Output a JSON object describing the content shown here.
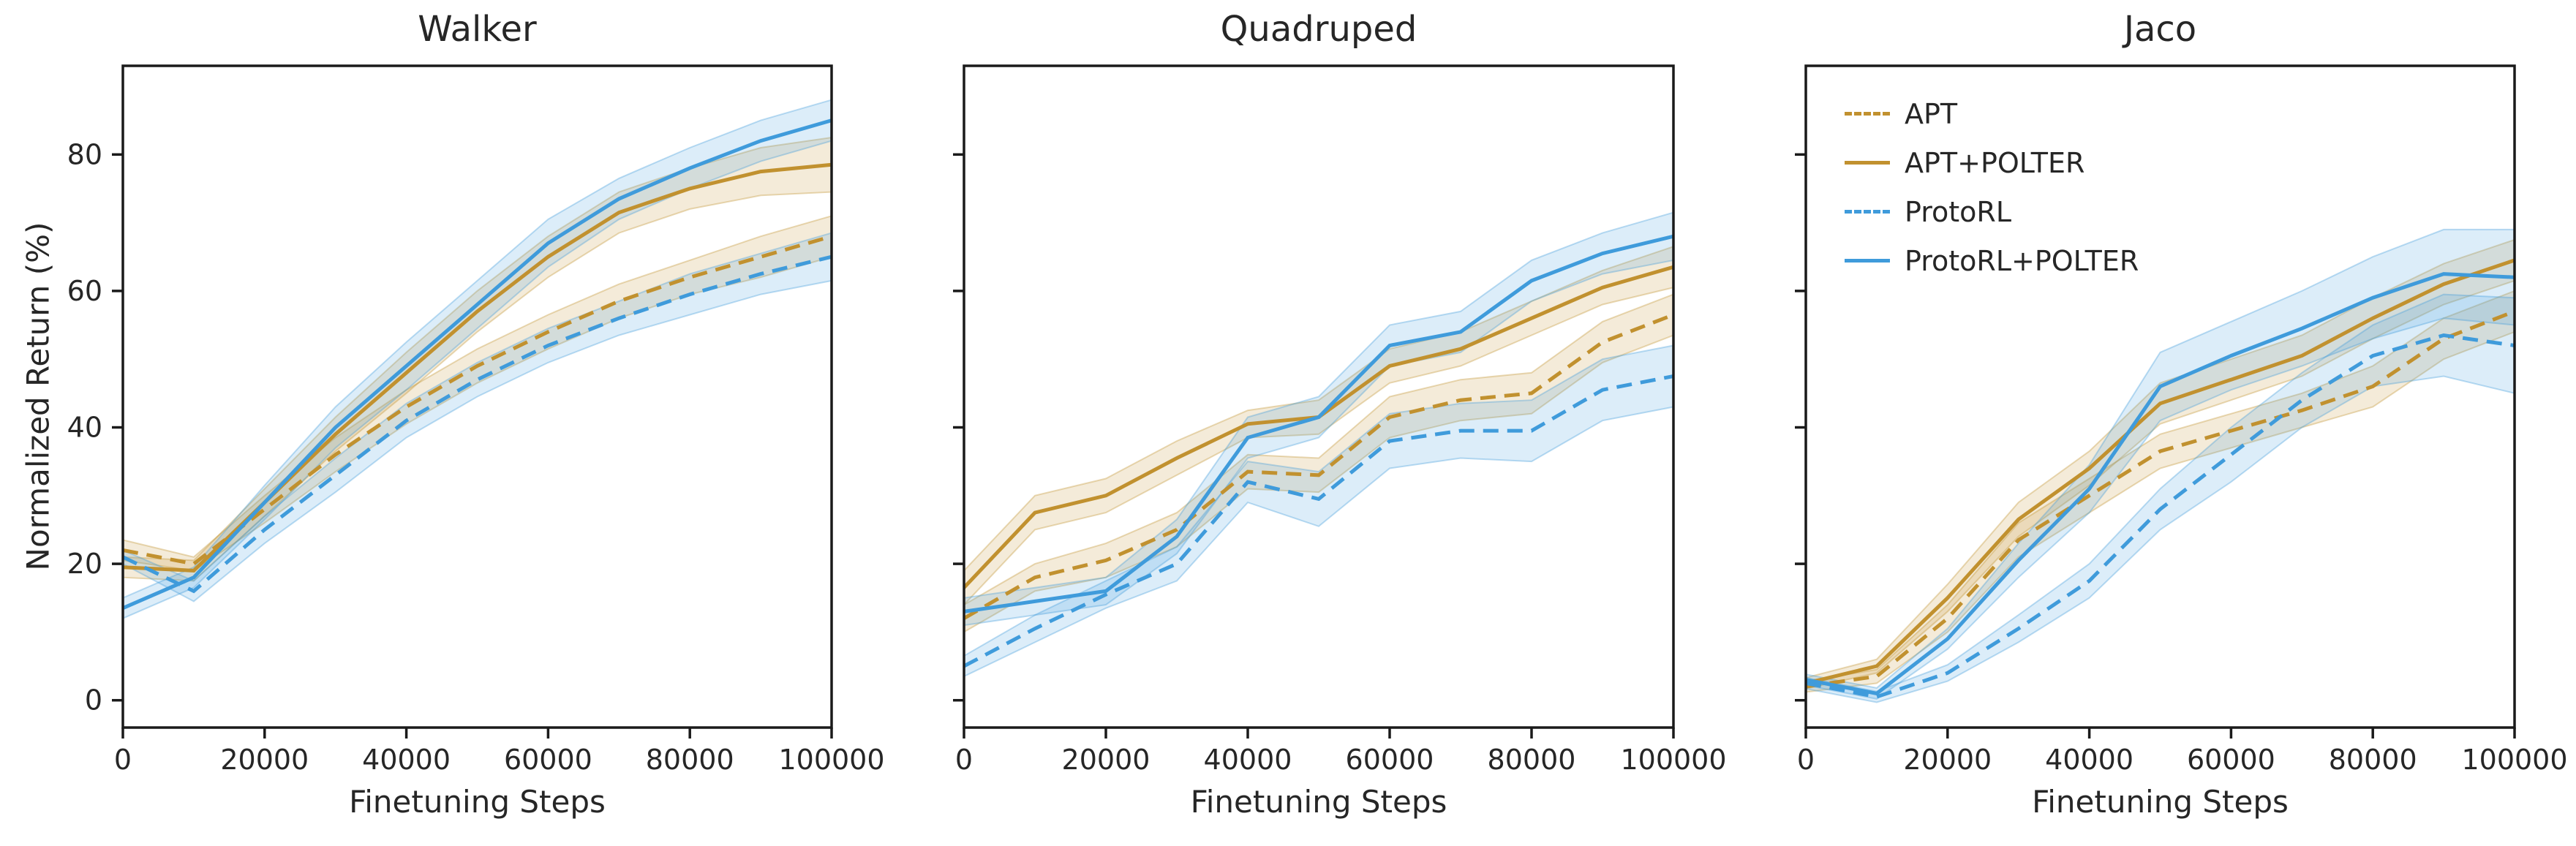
{
  "figure": {
    "ylabel": "Normalized Return (%)",
    "background": "#ffffff",
    "text_color": "#262626",
    "axis_color": "#1a1a1a",
    "accent_orange": "#C1912F",
    "accent_blue": "#3F9BDB"
  },
  "chart_data": [
    {
      "type": "line",
      "title": "Walker",
      "xlabel": "Finetuning Steps",
      "ylabel": "Normalized Return (%)",
      "grid": false,
      "x": [
        0,
        10000,
        20000,
        30000,
        40000,
        50000,
        60000,
        70000,
        80000,
        90000,
        100000
      ],
      "xlim": [
        0,
        100000
      ],
      "ylim": [
        -4,
        93
      ],
      "xticks": [
        0,
        20000,
        40000,
        60000,
        80000,
        100000
      ],
      "xtick_labels": [
        "0",
        "20000",
        "40000",
        "60000",
        "80000",
        "100000"
      ],
      "yticks": [
        0,
        20,
        40,
        60,
        80
      ],
      "ytick_labels": [
        "0",
        "20",
        "40",
        "60",
        "80"
      ],
      "series": [
        {
          "name": "APT",
          "color": "#C1912F",
          "dashed": true,
          "values": [
            22,
            20,
            28,
            36,
            43,
            49,
            54,
            58.5,
            62,
            65,
            68
          ],
          "err": [
            1.5,
            1,
            2,
            2.5,
            2.5,
            2.5,
            2.5,
            2.5,
            2.5,
            3,
            3
          ]
        },
        {
          "name": "APT+POLTER",
          "color": "#C1912F",
          "dashed": false,
          "values": [
            19.5,
            19,
            29,
            39,
            48,
            57,
            65,
            71.5,
            75,
            77.5,
            78.5
          ],
          "err": [
            1.5,
            1.5,
            2,
            2.5,
            3,
            3,
            3,
            3,
            3,
            3.5,
            4
          ]
        },
        {
          "name": "ProtoRL",
          "color": "#3F9BDB",
          "dashed": true,
          "values": [
            21,
            16,
            25,
            33,
            41,
            47,
            52,
            56,
            59.5,
            62.5,
            65
          ],
          "err": [
            1,
            1.5,
            2,
            2.5,
            2.5,
            2.5,
            2.5,
            2.5,
            3,
            3,
            3.5
          ]
        },
        {
          "name": "ProtoRL+POLTER",
          "color": "#3F9BDB",
          "dashed": false,
          "values": [
            13.5,
            18,
            29,
            40,
            49,
            58,
            67,
            73.5,
            78,
            82,
            85
          ],
          "err": [
            1.5,
            1.5,
            2.5,
            3,
            3.5,
            3.5,
            3.5,
            3,
            3,
            3,
            3
          ]
        }
      ]
    },
    {
      "type": "line",
      "title": "Quadruped",
      "xlabel": "Finetuning Steps",
      "ylabel": "",
      "grid": false,
      "x": [
        0,
        10000,
        20000,
        30000,
        40000,
        50000,
        60000,
        70000,
        80000,
        90000,
        100000
      ],
      "xlim": [
        0,
        100000
      ],
      "ylim": [
        -4,
        93
      ],
      "xticks": [
        0,
        20000,
        40000,
        60000,
        80000,
        100000
      ],
      "xtick_labels": [
        "0",
        "20000",
        "40000",
        "60000",
        "80000",
        "100000"
      ],
      "yticks": [
        0,
        20,
        40,
        60,
        80
      ],
      "ytick_labels": [],
      "series": [
        {
          "name": "APT",
          "color": "#C1912F",
          "dashed": true,
          "values": [
            12,
            18,
            20.5,
            25,
            33.5,
            33,
            41.5,
            44,
            45,
            52.5,
            56.5
          ],
          "err": [
            2,
            2,
            2.5,
            2.5,
            2.5,
            2.5,
            3,
            3,
            3,
            3,
            3
          ]
        },
        {
          "name": "APT+POLTER",
          "color": "#C1912F",
          "dashed": false,
          "values": [
            16.5,
            27.5,
            30,
            35.5,
            40.5,
            41.5,
            49,
            51.5,
            56,
            60.5,
            63.5
          ],
          "err": [
            2.5,
            2.5,
            2.5,
            2.5,
            2,
            2.5,
            2.5,
            2.5,
            2.5,
            2.5,
            3
          ]
        },
        {
          "name": "ProtoRL",
          "color": "#3F9BDB",
          "dashed": true,
          "values": [
            5,
            10.5,
            15.5,
            20,
            32,
            29.5,
            38,
            39.5,
            39.5,
            45.5,
            47.5
          ],
          "err": [
            1.5,
            2,
            2,
            2.5,
            3,
            4,
            4,
            4,
            4.5,
            4.5,
            4.5
          ]
        },
        {
          "name": "ProtoRL+POLTER",
          "color": "#3F9BDB",
          "dashed": false,
          "values": [
            13,
            14.5,
            16,
            24,
            38.5,
            41.5,
            52,
            54,
            61.5,
            65.5,
            68
          ],
          "err": [
            2,
            2,
            2,
            2.5,
            3,
            3,
            3,
            3,
            3,
            3,
            3.5
          ]
        }
      ]
    },
    {
      "type": "line",
      "title": "Jaco",
      "xlabel": "Finetuning Steps",
      "ylabel": "",
      "grid": false,
      "legend_position": "upper left",
      "x": [
        0,
        10000,
        20000,
        30000,
        40000,
        50000,
        60000,
        70000,
        80000,
        90000,
        100000
      ],
      "xlim": [
        0,
        100000
      ],
      "ylim": [
        -4,
        93
      ],
      "xticks": [
        0,
        20000,
        40000,
        60000,
        80000,
        100000
      ],
      "xtick_labels": [
        "0",
        "20000",
        "40000",
        "60000",
        "80000",
        "100000"
      ],
      "yticks": [
        0,
        20,
        40,
        60,
        80
      ],
      "ytick_labels": [],
      "series": [
        {
          "name": "APT",
          "color": "#C1912F",
          "dashed": true,
          "values": [
            2,
            3.5,
            12,
            23.5,
            30,
            36.5,
            39.5,
            42.5,
            46,
            53,
            57
          ],
          "err": [
            0.8,
            1,
            2,
            2.5,
            2.5,
            2.5,
            2.5,
            2.5,
            3,
            3,
            3
          ]
        },
        {
          "name": "APT+POLTER",
          "color": "#C1912F",
          "dashed": false,
          "values": [
            2.5,
            5,
            15,
            26.5,
            34,
            43.5,
            47,
            50.5,
            56,
            61,
            64.5
          ],
          "err": [
            0.8,
            1,
            2,
            2.5,
            2.5,
            3,
            3,
            3,
            3,
            3,
            3
          ]
        },
        {
          "name": "ProtoRL",
          "color": "#3F9BDB",
          "dashed": true,
          "values": [
            2.5,
            0.5,
            4,
            10.5,
            17.5,
            28,
            36,
            44,
            50.5,
            53.5,
            52
          ],
          "err": [
            0.8,
            0.8,
            1.2,
            2,
            2.5,
            3,
            4,
            4,
            4.5,
            6,
            7
          ]
        },
        {
          "name": "ProtoRL+POLTER",
          "color": "#3F9BDB",
          "dashed": false,
          "values": [
            3,
            1,
            9,
            20.5,
            31,
            46,
            50.5,
            54.5,
            59,
            62.5,
            62
          ],
          "err": [
            0.8,
            0.8,
            1.5,
            2.5,
            3.5,
            5,
            5,
            5.5,
            6,
            6.5,
            7
          ]
        }
      ]
    }
  ]
}
